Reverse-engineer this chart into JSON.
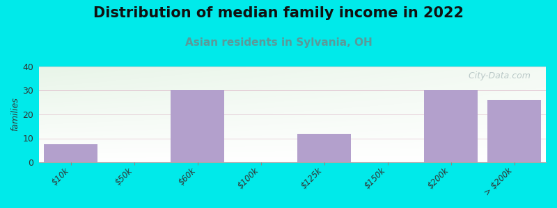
{
  "title": "Distribution of median family income in 2022",
  "subtitle": "Asian residents in Sylvania, OH",
  "categories": [
    "$10k",
    "$50k",
    "$60k",
    "$100k",
    "$125k",
    "$150k",
    "$200k",
    "> $200k"
  ],
  "values": [
    7.5,
    0,
    30,
    0,
    12,
    0,
    30,
    26
  ],
  "bar_color": "#b3a0cc",
  "background_color": "#00eaea",
  "grid_color": "#ddb8c8",
  "ylabel": "families",
  "ylim": [
    0,
    40
  ],
  "yticks": [
    0,
    10,
    20,
    30,
    40
  ],
  "title_fontsize": 15,
  "subtitle_fontsize": 11,
  "subtitle_color": "#5a9a9a",
  "title_color": "#111111",
  "watermark": "  City-Data.com",
  "watermark_color": "#b0c0c0"
}
